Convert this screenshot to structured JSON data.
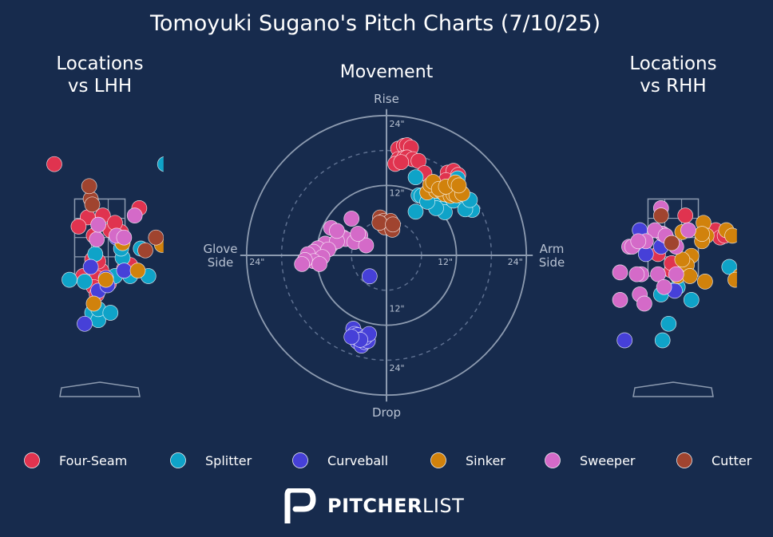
{
  "title": "Tomoyuki Sugano's Pitch Charts (7/10/25)",
  "colors": {
    "background": "#172b4d",
    "grid": "#8d9bb0",
    "text": "#ffffff",
    "muted": "#b8c2d2"
  },
  "logo": {
    "bold": "PITCHER",
    "light": "LIST",
    "icon": "pitcherlist-logo-icon"
  },
  "pitch_types": [
    {
      "name": "Four-Seam",
      "color": "#e0334f"
    },
    {
      "name": "Splitter",
      "color": "#0fa3c8"
    },
    {
      "name": "Curveball",
      "color": "#4640d8"
    },
    {
      "name": "Sinker",
      "color": "#d1820c"
    },
    {
      "name": "Sweeper",
      "color": "#d46ac8"
    },
    {
      "name": "Cutter",
      "color": "#a0442f"
    }
  ],
  "chart_data": [
    {
      "type": "scatter",
      "title": "Locations\nvs LHH",
      "xlim": [
        -2.1,
        2.1
      ],
      "ylim": [
        -0.4,
        5.3
      ],
      "strike_zone": {
        "x": [
          -0.83,
          0.83
        ],
        "y": [
          1.5,
          3.6
        ]
      },
      "series": [
        {
          "name": "Four-Seam",
          "points": [
            [
              -1.5,
              4.55
            ],
            [
              1.3,
              3.35
            ],
            [
              -0.4,
              3.1
            ],
            [
              0.1,
              3.15
            ],
            [
              -0.7,
              2.85
            ],
            [
              -0.2,
              2.6
            ],
            [
              0.7,
              2.7
            ],
            [
              0.35,
              2.75
            ],
            [
              0.5,
              2.95
            ],
            [
              -0.25,
              1.95
            ],
            [
              0.05,
              1.65
            ],
            [
              -0.55,
              1.5
            ],
            [
              0.8,
              1.7
            ],
            [
              -0.1,
              1.45
            ],
            [
              -0.2,
              1.2
            ],
            [
              0.3,
              1.3
            ],
            [
              1.0,
              1.8
            ],
            [
              -0.05,
              1.9
            ],
            [
              -0.1,
              1.0
            ]
          ]
        },
        {
          "name": "Splitter",
          "points": [
            [
              2.15,
              4.55
            ],
            [
              -0.15,
              2.1
            ],
            [
              -0.5,
              1.35
            ],
            [
              0.75,
              2.0
            ],
            [
              1.0,
              1.5
            ],
            [
              0.5,
              1.5
            ],
            [
              1.6,
              1.5
            ],
            [
              1.35,
              2.25
            ],
            [
              0.7,
              2.25
            ],
            [
              -0.25,
              0.5
            ],
            [
              -0.05,
              0.3
            ],
            [
              -0.05,
              0.6
            ],
            [
              0.35,
              0.5
            ],
            [
              -1.0,
              1.4
            ]
          ]
        },
        {
          "name": "Curveball",
          "points": [
            [
              0.55,
              2.55
            ],
            [
              0.8,
              1.65
            ],
            [
              0.2,
              1.45
            ],
            [
              -0.3,
              1.75
            ],
            [
              -0.05,
              1.1
            ],
            [
              0.25,
              1.25
            ],
            [
              -0.5,
              0.2
            ]
          ]
        },
        {
          "name": "Sinker",
          "points": [
            [
              0.75,
              2.4
            ],
            [
              2.05,
              2.35
            ],
            [
              1.25,
              1.65
            ],
            [
              0.2,
              1.4
            ],
            [
              -0.2,
              0.75
            ]
          ]
        },
        {
          "name": "Sweeper",
          "points": [
            [
              0.55,
              2.6
            ],
            [
              -0.1,
              2.5
            ],
            [
              0.8,
              2.55
            ],
            [
              -0.05,
              2.9
            ],
            [
              1.15,
              3.15
            ]
          ]
        },
        {
          "name": "Cutter",
          "points": [
            [
              -0.3,
              3.6
            ],
            [
              -0.35,
              3.95
            ],
            [
              -0.25,
              3.45
            ],
            [
              1.85,
              2.55
            ],
            [
              1.5,
              2.2
            ]
          ]
        }
      ]
    },
    {
      "type": "scatter",
      "title": "Movement",
      "rings": [
        12,
        24
      ],
      "dashed_rings": [
        6,
        18
      ],
      "ring_labels": [
        "12\"",
        "24\""
      ],
      "axis_labels": {
        "top": "Rise",
        "bottom": "Drop",
        "left": "Glove\nSide",
        "right": "Arm\nSide"
      },
      "series": [
        {
          "name": "Four-Seam",
          "points": [
            [
              2,
              18.3
            ],
            [
              3,
              18.8
            ],
            [
              3.5,
              18.9
            ],
            [
              4.2,
              18.5
            ],
            [
              2,
              16.5
            ],
            [
              3,
              16.7
            ],
            [
              3.5,
              16.8
            ],
            [
              4.5,
              16.5
            ],
            [
              5.5,
              16.2
            ],
            [
              1.5,
              15.7
            ],
            [
              2.5,
              16.0
            ],
            [
              6.5,
              14.1
            ],
            [
              10.5,
              14.2
            ],
            [
              11,
              13.2
            ],
            [
              11.5,
              14.5
            ],
            [
              12.3,
              13.8
            ],
            [
              10.2,
              12.9
            ]
          ]
        },
        {
          "name": "Splitter",
          "points": [
            [
              5,
              13.4
            ],
            [
              5.5,
              10.3
            ],
            [
              6,
              10.2
            ],
            [
              7.5,
              9.5
            ],
            [
              8,
              11.1
            ],
            [
              9,
              8.9
            ],
            [
              9.5,
              8.0
            ],
            [
              10,
              7.4
            ],
            [
              11.5,
              9.4
            ],
            [
              8.5,
              8.1
            ],
            [
              13.2,
              10.0
            ],
            [
              14.7,
              7.8
            ],
            [
              13.5,
              7.9
            ],
            [
              14.3,
              9.5
            ],
            [
              10,
              11.3
            ],
            [
              12.5,
              10.5
            ],
            [
              12.2,
              13.2
            ],
            [
              7,
              9.2
            ],
            [
              5,
              7.5
            ]
          ]
        },
        {
          "name": "Curveball",
          "points": [
            [
              -5.7,
              -12.6
            ],
            [
              -5.5,
              -13.5
            ],
            [
              -5,
              -14.8
            ],
            [
              -4.3,
              -15.5
            ],
            [
              -3.7,
              -14.9
            ],
            [
              -3.2,
              -14.7
            ],
            [
              -5,
              -13.7
            ],
            [
              -3.7,
              -14.1
            ],
            [
              -3,
              -13.5
            ],
            [
              -4.5,
              -14.5
            ],
            [
              -6,
              -14.0
            ],
            [
              -2.9,
              -3.6
            ]
          ]
        },
        {
          "name": "Sinker",
          "points": [
            [
              7,
              10.8
            ],
            [
              8.5,
              11.1
            ],
            [
              9.5,
              10.9
            ],
            [
              10,
              10.5
            ],
            [
              11,
              10.2
            ],
            [
              11.5,
              10.5
            ],
            [
              12,
              10.3
            ],
            [
              13,
              10.6
            ],
            [
              7.5,
              12.1
            ],
            [
              8,
              12.6
            ],
            [
              9,
              11.4
            ],
            [
              10.2,
              11.8
            ],
            [
              11.8,
              12.5
            ],
            [
              12.4,
              12.0
            ]
          ]
        },
        {
          "name": "Sweeper",
          "points": [
            [
              -7.5,
              3.1
            ],
            [
              -9.5,
              1.8
            ],
            [
              -10.5,
              2.0
            ],
            [
              -11.8,
              1.2
            ],
            [
              -12.5,
              0.6
            ],
            [
              -13.5,
              0.2
            ],
            [
              -7,
              2.8
            ],
            [
              -8.5,
              2.4
            ],
            [
              -10,
              1.0
            ],
            [
              -11,
              -0.3
            ],
            [
              -12.5,
              -1.0
            ],
            [
              -14,
              -0.8
            ],
            [
              -14.5,
              -1.5
            ],
            [
              -4.5,
              3.4
            ],
            [
              -5.5,
              2.3
            ],
            [
              -3.5,
              1.7
            ],
            [
              -9.5,
              4.7
            ],
            [
              -8.5,
              4.2
            ],
            [
              -6,
              6.3
            ],
            [
              -4.9,
              3.7
            ],
            [
              -11.5,
              -1.5
            ]
          ]
        },
        {
          "name": "Cutter",
          "points": [
            [
              -1.1,
              6.5
            ],
            [
              -0.5,
              5.9
            ],
            [
              0.7,
              5.9
            ],
            [
              -0.3,
              4.8
            ],
            [
              1,
              4.4
            ],
            [
              -1.2,
              5.6
            ],
            [
              1.1,
              5.3
            ]
          ]
        }
      ]
    },
    {
      "type": "scatter",
      "title": "Locations\nvs RHH",
      "xlim": [
        -2.1,
        2.1
      ],
      "ylim": [
        -0.4,
        5.3
      ],
      "strike_zone": {
        "x": [
          -0.83,
          0.83
        ],
        "y": [
          1.5,
          3.6
        ]
      },
      "series": [
        {
          "name": "Four-Seam",
          "points": [
            [
              0.4,
              3.15
            ],
            [
              1.4,
              2.75
            ],
            [
              1.55,
              2.55
            ],
            [
              1.7,
              2.6
            ],
            [
              -0.2,
              2.5
            ],
            [
              -0.5,
              2.1
            ],
            [
              -0.05,
              1.65
            ],
            [
              -0.05,
              1.85
            ]
          ]
        },
        {
          "name": "Splitter",
          "points": [
            [
              1.85,
              1.75
            ],
            [
              0.15,
              1.2
            ],
            [
              -0.4,
              1.0
            ],
            [
              0.6,
              0.85
            ],
            [
              -0.15,
              0.2
            ],
            [
              -0.35,
              -0.25
            ]
          ]
        },
        {
          "name": "Curveball",
          "points": [
            [
              -0.9,
              2.1
            ],
            [
              -0.4,
              2.3
            ],
            [
              -1.1,
              2.75
            ],
            [
              0.05,
              1.1
            ],
            [
              -1.6,
              -0.25
            ]
          ]
        },
        {
          "name": "Sinker",
          "points": [
            [
              0.3,
              2.7
            ],
            [
              1.0,
              2.95
            ],
            [
              1.1,
              2.6
            ],
            [
              1.75,
              2.75
            ],
            [
              1.95,
              2.6
            ],
            [
              0.95,
              2.45
            ],
            [
              0.6,
              2.05
            ],
            [
              0.45,
              1.8
            ],
            [
              0.15,
              1.5
            ],
            [
              0.55,
              1.5
            ],
            [
              1.05,
              1.35
            ],
            [
              0.3,
              1.95
            ],
            [
              2.2,
              1.5
            ],
            [
              2.05,
              1.4
            ],
            [
              -0.35,
              2.65
            ],
            [
              0.95,
              2.65
            ]
          ]
        },
        {
          "name": "Sweeper",
          "points": [
            [
              -0.4,
              3.35
            ],
            [
              -0.35,
              2.65
            ],
            [
              -0.6,
              2.75
            ],
            [
              -0.9,
              2.45
            ],
            [
              -0.5,
              1.55
            ],
            [
              -0.3,
              1.2
            ],
            [
              -1.1,
              1.0
            ],
            [
              -1.45,
              2.3
            ],
            [
              -1.05,
              1.55
            ],
            [
              -1.75,
              1.6
            ],
            [
              -1.2,
              1.55
            ],
            [
              0.1,
              1.55
            ],
            [
              -1.35,
              2.3
            ],
            [
              0.1,
              2.3
            ],
            [
              -1.75,
              0.85
            ],
            [
              -0.25,
              2.6
            ],
            [
              -0.95,
              0.75
            ],
            [
              -1.15,
              2.45
            ],
            [
              0.5,
              2.75
            ]
          ]
        },
        {
          "name": "Cutter",
          "points": [
            [
              -0.4,
              3.15
            ],
            [
              -0.05,
              2.4
            ]
          ]
        }
      ]
    }
  ]
}
